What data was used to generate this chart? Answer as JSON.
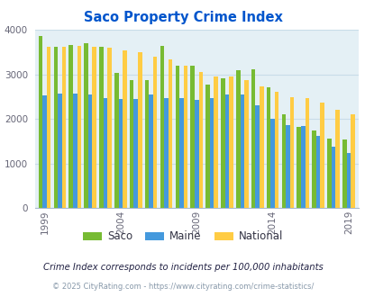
{
  "title": "Saco Property Crime Index",
  "title_color": "#0055cc",
  "subtitle": "Crime Index corresponds to incidents per 100,000 inhabitants",
  "footer": "© 2025 CityRating.com - https://www.cityrating.com/crime-statistics/",
  "years": [
    1999,
    2000,
    2001,
    2002,
    2003,
    2004,
    2005,
    2006,
    2007,
    2008,
    2009,
    2010,
    2011,
    2012,
    2013,
    2014,
    2015,
    2016,
    2017,
    2018,
    2019
  ],
  "saco": [
    3850,
    3625,
    3650,
    3700,
    3625,
    3040,
    2870,
    2870,
    3640,
    3190,
    3200,
    2775,
    2900,
    3100,
    3110,
    2700,
    2100,
    1810,
    1730,
    1550,
    1530
  ],
  "maine": [
    2530,
    2575,
    2560,
    2550,
    2460,
    2450,
    2445,
    2540,
    2460,
    2465,
    2420,
    2460,
    2540,
    2545,
    2310,
    2000,
    1850,
    1840,
    1620,
    1370,
    1240
  ],
  "national": [
    3610,
    3625,
    3645,
    3625,
    3600,
    3530,
    3490,
    3400,
    3330,
    3200,
    3060,
    2950,
    2940,
    2860,
    2730,
    2600,
    2490,
    2460,
    2360,
    2200,
    2100
  ],
  "bar_width": 0.27,
  "ylim": [
    0,
    4000
  ],
  "yticks": [
    0,
    1000,
    2000,
    3000,
    4000
  ],
  "xtick_years": [
    1999,
    2004,
    2009,
    2014,
    2019
  ],
  "color_saco": "#77bb33",
  "color_maine": "#4499dd",
  "color_national": "#ffcc44",
  "bg_color": "#e4f0f5",
  "grid_color": "#c8dce8",
  "legend_labels": [
    "Saco",
    "Maine",
    "National"
  ],
  "legend_colors": [
    "#77bb33",
    "#4499dd",
    "#ffcc44"
  ]
}
